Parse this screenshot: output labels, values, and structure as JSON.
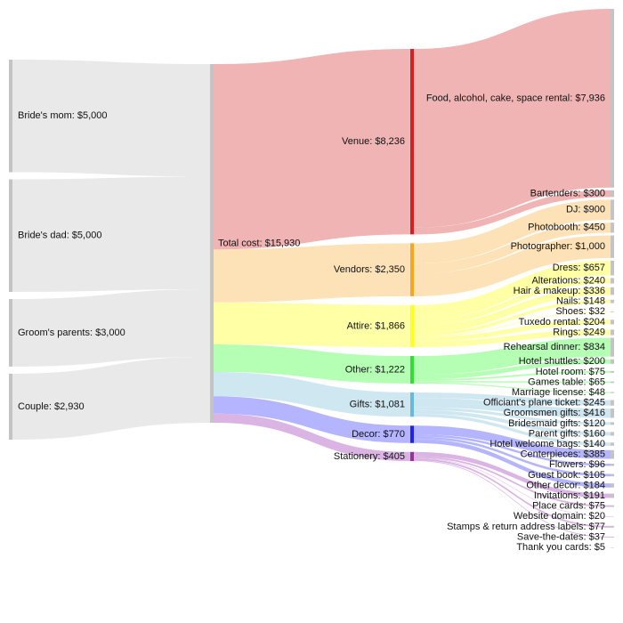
{
  "chart_data": {
    "type": "sankey",
    "sources": [
      {
        "label": "Bride's mom: $5,000",
        "value": 5000
      },
      {
        "label": "Bride's dad: $5,000",
        "value": 5000
      },
      {
        "label": "Groom's parents: $3,000",
        "value": 3000
      },
      {
        "label": "Couple: $2,930",
        "value": 2930
      }
    ],
    "total": {
      "label": "Total cost: $15,930",
      "value": 15930
    },
    "categories": [
      {
        "label": "Venue: $8,236",
        "value": 8236,
        "color": "#d42020",
        "link_color": "#efb0b0",
        "items": [
          {
            "label": "Food, alcohol, cake, space rental: $7,936",
            "value": 7936
          },
          {
            "label": "Bartenders: $300",
            "value": 300
          }
        ]
      },
      {
        "label": "Vendors: $2,350",
        "value": 2350,
        "color": "#f5a623",
        "link_color": "#fde0b4",
        "items": [
          {
            "label": "DJ: $900",
            "value": 900
          },
          {
            "label": "Photobooth: $450",
            "value": 450
          },
          {
            "label": "Photographer: $1,000",
            "value": 1000
          }
        ]
      },
      {
        "label": "Attire: $1,866",
        "value": 1866,
        "color": "#ffff22",
        "link_color": "#ffffa0",
        "items": [
          {
            "label": "Dress: $657",
            "value": 657
          },
          {
            "label": "Alterations: $240",
            "value": 240
          },
          {
            "label": "Hair & makeup: $336",
            "value": 336
          },
          {
            "label": "Nails: $148",
            "value": 148
          },
          {
            "label": "Shoes: $32",
            "value": 32
          },
          {
            "label": "Tuxedo rental: $204",
            "value": 204
          },
          {
            "label": "Rings: $249",
            "value": 249
          }
        ]
      },
      {
        "label": "Other: $1,222",
        "value": 1222,
        "color": "#33dd33",
        "link_color": "#b0ffb0",
        "items": [
          {
            "label": "Rehearsal dinner: $834",
            "value": 834
          },
          {
            "label": "Hotel shuttles: $200",
            "value": 200
          },
          {
            "label": "Hotel room: $75",
            "value": 75
          },
          {
            "label": "Games table: $65",
            "value": 65
          },
          {
            "label": "Marriage license: $48",
            "value": 48
          }
        ]
      },
      {
        "label": "Gifts: $1,081",
        "value": 1081,
        "color": "#66bbdd",
        "link_color": "#cce6f0",
        "items": [
          {
            "label": "Officiant's plane ticket: $245",
            "value": 245
          },
          {
            "label": "Groomsmen gifts: $416",
            "value": 416
          },
          {
            "label": "Bridesmaid gifts: $120",
            "value": 120
          },
          {
            "label": "Parent gifts: $160",
            "value": 160
          },
          {
            "label": "Hotel welcome bags: $140",
            "value": 140
          }
        ]
      },
      {
        "label": "Decor: $770",
        "value": 770,
        "color": "#2222ee",
        "link_color": "#b0b0ff",
        "items": [
          {
            "label": "Centerpieces: $385",
            "value": 385
          },
          {
            "label": "Flowers: $96",
            "value": 96
          },
          {
            "label": "Guest book: $105",
            "value": 105
          },
          {
            "label": "Other decor: $184",
            "value": 184
          }
        ]
      },
      {
        "label": "Stationery: $405",
        "value": 405,
        "color": "#993399",
        "link_color": "#d8b0e0",
        "items": [
          {
            "label": "Invitations: $191",
            "value": 191
          },
          {
            "label": "Place cards: $75",
            "value": 75
          },
          {
            "label": "Website domain: $20",
            "value": 20
          },
          {
            "label": "Stamps & return address labels: $77",
            "value": 77
          },
          {
            "label": "Save-the-dates: $37",
            "value": 37
          },
          {
            "label": "Thank you cards: $5",
            "value": 5
          }
        ]
      }
    ]
  }
}
